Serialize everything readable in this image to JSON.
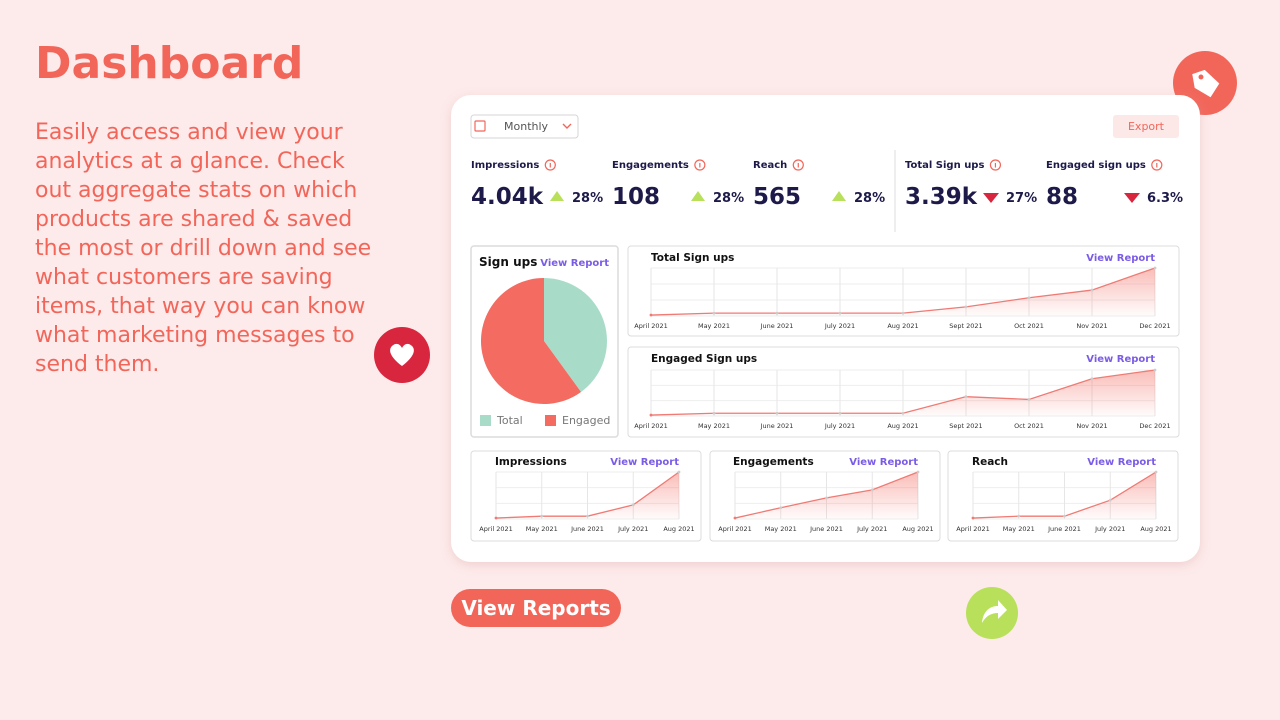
{
  "header": {
    "title": "Dashboard",
    "description": "Easily access and view your analytics at a glance. Check out aggregate stats on which products are shared & saved the most or drill down and see what customers are saving items, that way you can know what marketing messages to send them."
  },
  "dashboard": {
    "period": "Monthly",
    "export": "Export",
    "stats": [
      {
        "label": "Impressions",
        "value": "4.04k",
        "change": "28%",
        "trend": "up"
      },
      {
        "label": "Engagements",
        "value": "108",
        "change": "28%",
        "trend": "up"
      },
      {
        "label": "Reach",
        "value": "565",
        "change": "28%",
        "trend": "up"
      },
      {
        "label": "Total Sign ups",
        "value": "3.39k",
        "change": "27%",
        "trend": "down"
      },
      {
        "label": "Engaged sign ups",
        "value": "88",
        "change": "6.3%",
        "trend": "down"
      }
    ]
  },
  "chart_data": [
    {
      "type": "pie",
      "title": "Sign ups",
      "link": "View Report",
      "categories": [
        "Total",
        "Engaged"
      ],
      "values": [
        40,
        60
      ],
      "colors": [
        "#a8dcc9",
        "#f36b61"
      ]
    },
    {
      "type": "line",
      "title": "Total Sign ups",
      "link": "View Report",
      "categories": [
        "April 2021",
        "May 2021",
        "June 2021",
        "July 2021",
        "Aug 2021",
        "Sept 2021",
        "Oct 2021",
        "Nov 2021",
        "Dec 2021"
      ],
      "values": [
        2,
        6,
        6,
        6,
        6,
        19,
        38,
        54,
        100
      ],
      "ylim": [
        0,
        100
      ],
      "color": "#f07a74"
    },
    {
      "type": "line",
      "title": "Engaged Sign ups",
      "link": "View Report",
      "categories": [
        "April 2021",
        "May 2021",
        "June 2021",
        "July 2021",
        "Aug 2021",
        "Sept 2021",
        "Oct 2021",
        "Nov 2021",
        "Dec 2021"
      ],
      "values": [
        2,
        6,
        6,
        6,
        6,
        42,
        36,
        81,
        100
      ],
      "ylim": [
        0,
        100
      ],
      "color": "#f07a74"
    },
    {
      "type": "line",
      "title": "Impressions",
      "link": "View Report",
      "categories": [
        "April 2021",
        "May 2021",
        "June 2021",
        "July 2021",
        "Aug 2021"
      ],
      "values": [
        2,
        6,
        6,
        30,
        100
      ],
      "ylim": [
        0,
        100
      ],
      "color": "#f07a74"
    },
    {
      "type": "line",
      "title": "Engagements",
      "link": "View Report",
      "categories": [
        "April 2021",
        "May 2021",
        "June 2021",
        "July 2021",
        "Aug 2021"
      ],
      "values": [
        2,
        24,
        45,
        62,
        100
      ],
      "ylim": [
        0,
        100
      ],
      "color": "#f07a74"
    },
    {
      "type": "line",
      "title": "Reach",
      "link": "View Report",
      "categories": [
        "April 2021",
        "May 2021",
        "June 2021",
        "July 2021",
        "Aug 2021"
      ],
      "values": [
        2,
        6,
        6,
        40,
        100
      ],
      "ylim": [
        0,
        100
      ],
      "color": "#f07a74"
    }
  ],
  "button": "View Reports"
}
